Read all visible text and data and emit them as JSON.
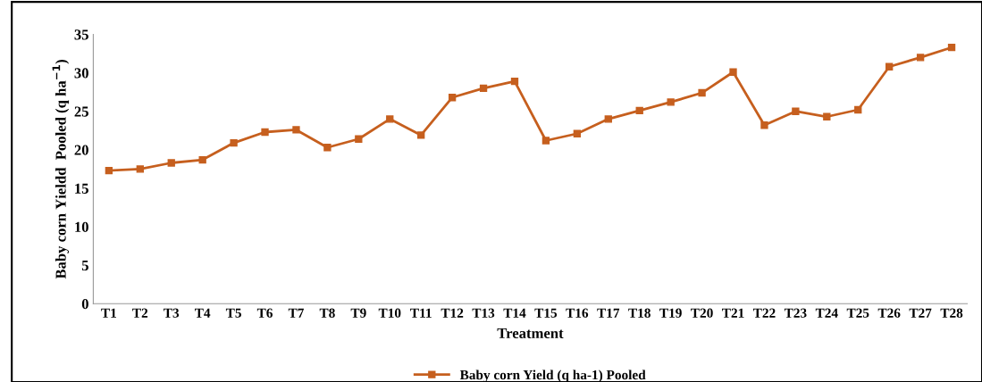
{
  "chart_data": {
    "type": "line",
    "xlabel": "Treatment",
    "ylabel": "Baby corn Yieldd  Pooled (q ha$^{−1}$)",
    "categories": [
      "T1",
      "T2",
      "T3",
      "T4",
      "T5",
      "T6",
      "T7",
      "T8",
      "T9",
      "T10",
      "T11",
      "T12",
      "T13",
      "T14",
      "T15",
      "T16",
      "T17",
      "T18",
      "T19",
      "T20",
      "T21",
      "T22",
      "T23",
      "T24",
      "T25",
      "T26",
      "T27",
      "T28"
    ],
    "series": [
      {
        "name": "Baby corn Yield (q ha-1) Pooled",
        "color": "#c65f1e",
        "values": [
          17.3,
          17.5,
          18.3,
          18.7,
          20.9,
          22.3,
          22.6,
          20.3,
          21.4,
          24.0,
          21.9,
          26.8,
          28.0,
          28.9,
          21.2,
          22.1,
          24.0,
          25.1,
          26.2,
          27.4,
          30.1,
          23.2,
          25.0,
          24.3,
          25.2,
          30.8,
          32.0,
          33.3
        ]
      }
    ],
    "ylim": [
      0,
      35
    ],
    "yticks": [
      0,
      5,
      10,
      15,
      20,
      25,
      30,
      35
    ],
    "grid": false,
    "legend": "bottom",
    "marker": "square",
    "line_style": "solid"
  }
}
